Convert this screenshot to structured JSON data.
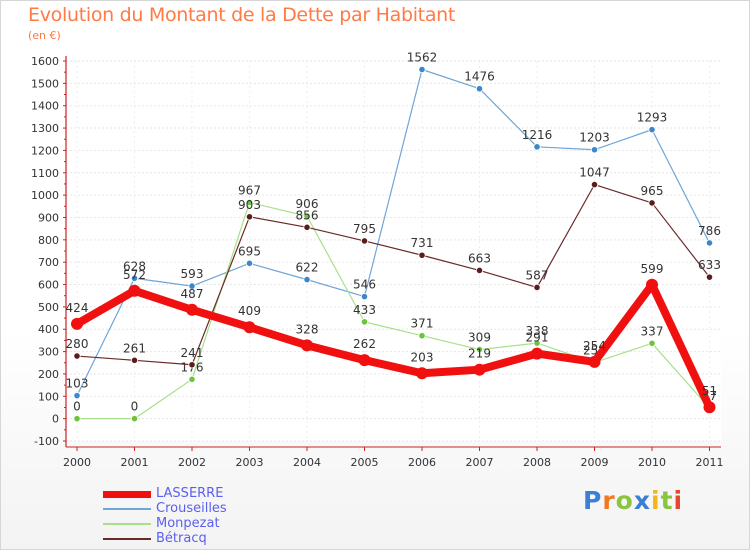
{
  "header": {
    "title": "Evolution du Montant de la Dette par Habitant",
    "unit": "(en €)"
  },
  "brand": {
    "letters": [
      "P",
      "r",
      "o",
      "x",
      "i",
      "t",
      "i"
    ],
    "colors": [
      "#3a7fd6",
      "#f07a22",
      "#8bc43f",
      "#3a7fd6",
      "#f2b51b",
      "#8bc43f",
      "#e8452c"
    ]
  },
  "chart_data": {
    "type": "line",
    "title": "Evolution du Montant de la Dette par Habitant",
    "ylabel": "(en €)",
    "xlabel": "",
    "categories": [
      "2000",
      "2001",
      "2002",
      "2003",
      "2004",
      "2005",
      "2006",
      "2007",
      "2008",
      "2009",
      "2010",
      "2011"
    ],
    "ylim": [
      -100,
      1600
    ],
    "yticks": [
      -100,
      0,
      100,
      200,
      300,
      400,
      500,
      600,
      700,
      800,
      900,
      1000,
      1100,
      1200,
      1300,
      1400,
      1500,
      1600
    ],
    "grid": true,
    "legend": "bottom-left",
    "series": [
      {
        "name": "Crouseilles",
        "color": "#6fa5d8",
        "marker": "#3d86cc",
        "values": [
          103,
          628,
          593,
          695,
          622,
          546,
          1562,
          1476,
          1216,
          1203,
          1293,
          786
        ],
        "labels": [
          "103",
          "628",
          "593",
          "695",
          "622",
          "546",
          "1562",
          "1476",
          "1216",
          "1203",
          "1293",
          "786"
        ]
      },
      {
        "name": "Monpezat",
        "color": "#a8e08a",
        "marker": "#6cc43a",
        "values": [
          0,
          0,
          176,
          967,
          906,
          433,
          371,
          309,
          338,
          251,
          337,
          47
        ],
        "labels": [
          "0",
          "0",
          "176",
          "967",
          "906",
          "433",
          "371",
          "309",
          "338",
          "251",
          "337",
          "47"
        ]
      },
      {
        "name": "Bétracq",
        "color": "#6a2a2a",
        "marker": "#5a1c1c",
        "values": [
          280,
          261,
          241,
          903,
          856,
          795,
          731,
          663,
          587,
          1047,
          965,
          633
        ],
        "labels": [
          "280",
          "261",
          "241",
          "903",
          "856",
          "795",
          "731",
          "663",
          "587",
          "1047",
          "965",
          "633"
        ]
      },
      {
        "name": "LASSERRE",
        "color": "#f01010",
        "marker": "#f01010",
        "values": [
          424,
          572,
          487,
          409,
          328,
          262,
          203,
          219,
          291,
          254,
          599,
          51
        ],
        "labels": [
          "424",
          "572",
          "487",
          "409",
          "328",
          "262",
          "203",
          "219",
          "291",
          "254",
          "599",
          "51"
        ]
      }
    ],
    "legend_order": [
      "LASSERRE",
      "Crouseilles",
      "Monpezat",
      "Bétracq"
    ]
  }
}
